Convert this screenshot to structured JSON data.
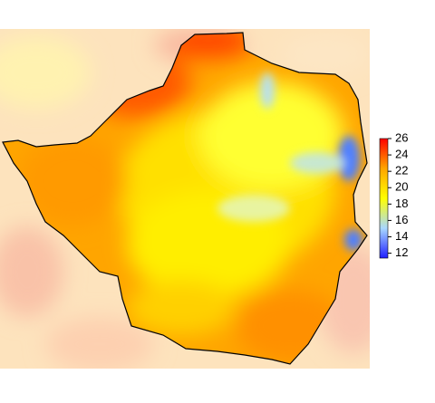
{
  "chart_data": {
    "type": "raster-map",
    "colorbar": {
      "lim": [
        11.4,
        26
      ],
      "ticks": [
        12,
        14,
        16,
        18,
        20,
        22,
        24,
        26
      ],
      "colors": [
        "#2020ff",
        "#a8d8ff",
        "#ffff00",
        "#ffa500",
        "#ff0000"
      ]
    }
  }
}
